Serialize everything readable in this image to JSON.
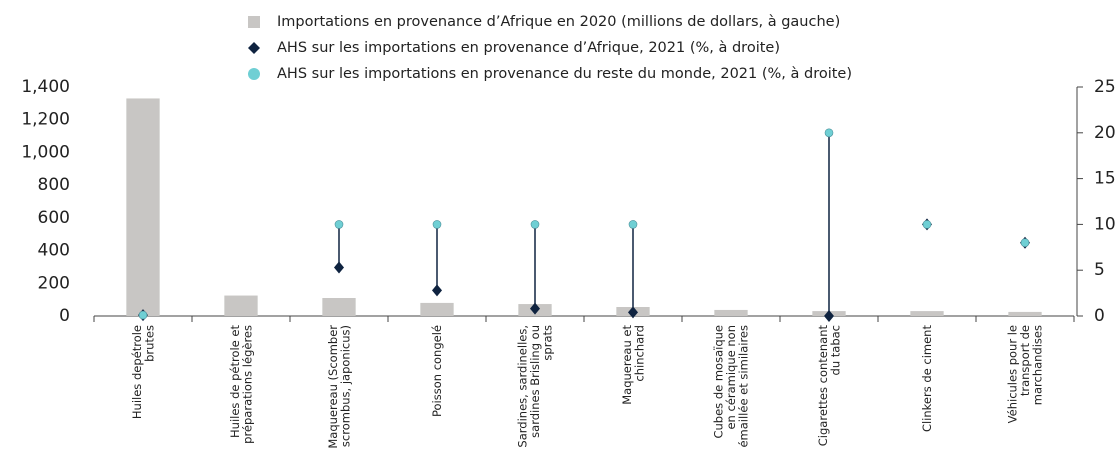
{
  "chart_data": {
    "type": "bar",
    "categories": [
      "Huiles depétrole\nbrutes",
      "Huiles de pétrole et\npréparations légères",
      "Maquereau (Scomber\nscrombus, japonicus)",
      "Poisson congelé",
      "Sardines, sardinelles,\nsardines Brisling ou\nsprats",
      "Maquereau et\nchinchard",
      "Cubes de mosaïque\nen céramique non\némaillée et similaires",
      "Cigarettes contenant\ndu tabac",
      "Clinkers de ciment",
      "Véhicules pour le\ntransport de\nmarchandises"
    ],
    "series": [
      {
        "name": "Importations en provenance d’Afrique en 2020 (millions de dollars, à gauche)",
        "type": "bar",
        "color": "#c8c6c4",
        "values": [
          1330,
          125,
          110,
          80,
          73,
          55,
          37,
          30,
          30,
          25
        ]
      },
      {
        "name": "AHS sur les importations en provenance d’Afrique, 2021 (%, à droite)",
        "type": "diamond",
        "axis": "y2",
        "color": "#0f2340",
        "values": [
          0.1,
          null,
          5.3,
          2.8,
          0.8,
          0.4,
          null,
          0,
          10,
          8
        ]
      },
      {
        "name": "AHS sur les importations en provenance du reste du monde, 2021 (%, à droite)",
        "type": "dot",
        "axis": "y2",
        "color": "#6fcfd4",
        "values": [
          0.1,
          null,
          10,
          10,
          10,
          10,
          null,
          20,
          10,
          8
        ]
      }
    ],
    "ylim": [
      0,
      1400
    ],
    "yticks": [
      0,
      200,
      400,
      600,
      800,
      {
        "value": 1000,
        "label": "1,000"
      },
      {
        "value": 1200,
        "label": "1,200"
      },
      {
        "value": 1400,
        "label": "1,400"
      }
    ],
    "y2lim": [
      0,
      25
    ],
    "y2ticks": [
      0,
      5,
      10,
      15,
      20,
      25
    ]
  }
}
